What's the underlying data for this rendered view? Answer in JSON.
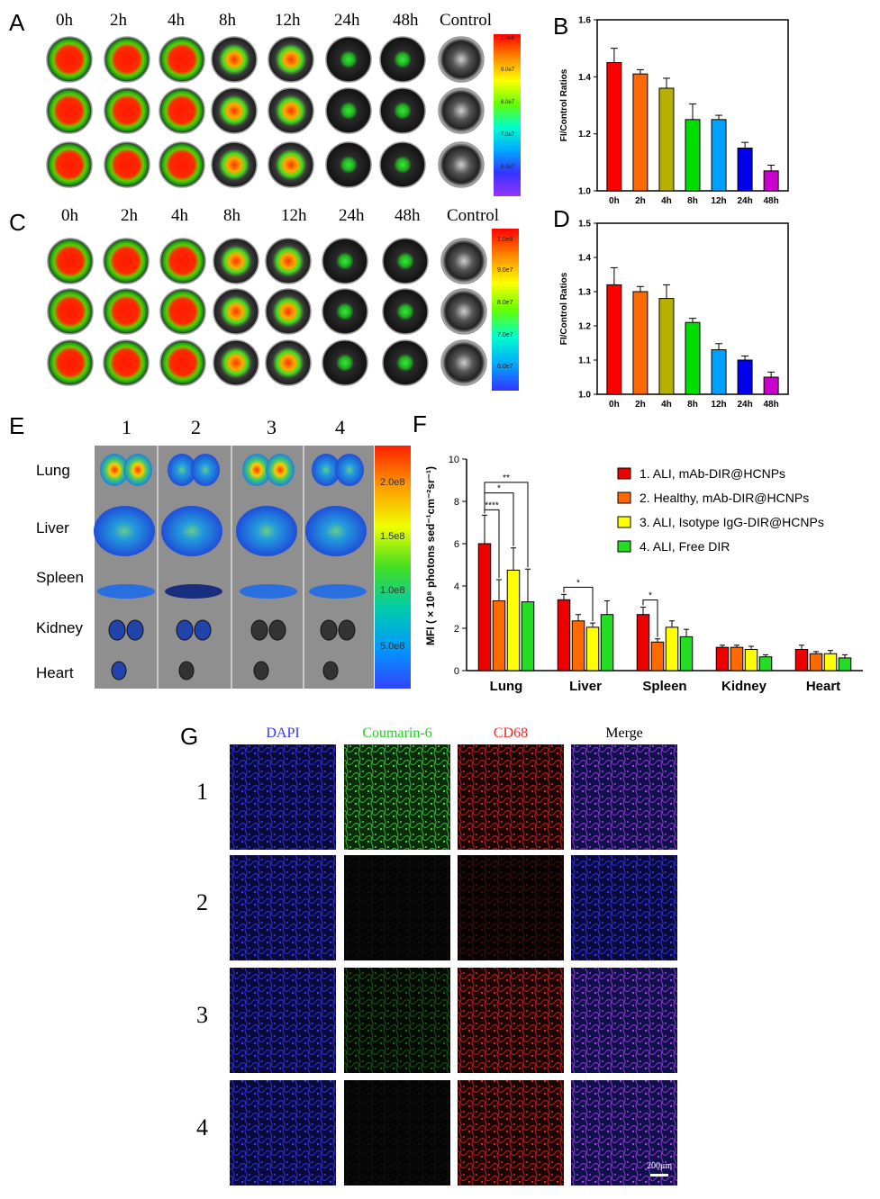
{
  "panels": {
    "A": "A",
    "B": "B",
    "C": "C",
    "D": "D",
    "E": "E",
    "F": "F",
    "G": "G"
  },
  "timepoints": [
    "0h",
    "2h",
    "4h",
    "8h",
    "12h",
    "24h",
    "48h",
    "Control"
  ],
  "scale_ac": {
    "A": [
      "1.0e8",
      "9.0e7",
      "8.0e7",
      "7.0e7",
      "6.0e7"
    ],
    "C": [
      "1.0e8",
      "9.0e7",
      "8.0e7",
      "7.0e7",
      "6.0e7"
    ]
  },
  "scale_e": [
    "2.0e8",
    "1.5e8",
    "1.0e8",
    "5.0e8"
  ],
  "panel_e": {
    "columns": [
      "1",
      "2",
      "3",
      "4"
    ],
    "organs": [
      "Lung",
      "Liver",
      "Spleen",
      "Kidney",
      "Heart"
    ]
  },
  "panel_g": {
    "channels": [
      "DAPI",
      "Coumarin-6",
      "CD68",
      "Merge"
    ],
    "channel_colors": [
      "#3333ff",
      "#22cc22",
      "#ff2222",
      "#000000"
    ],
    "rows": [
      "1",
      "2",
      "3",
      "4"
    ],
    "scalebar": "200μm"
  },
  "chart_data": [
    {
      "panel": "B",
      "type": "bar",
      "categories": [
        "0h",
        "2h",
        "4h",
        "8h",
        "12h",
        "24h",
        "48h"
      ],
      "values": [
        1.45,
        1.41,
        1.36,
        1.25,
        1.25,
        1.15,
        1.07
      ],
      "errors": [
        0.05,
        0.015,
        0.035,
        0.055,
        0.015,
        0.02,
        0.02
      ],
      "colors": [
        "#ff0000",
        "#ff6a00",
        "#b7b000",
        "#00dd00",
        "#00a0ff",
        "#0000ee",
        "#cc00cc"
      ],
      "ylabel": "FI/Control Ratios",
      "ylim": [
        1.0,
        1.6
      ],
      "yticks": [
        "1.0",
        "1.2",
        "1.4",
        "1.6"
      ]
    },
    {
      "panel": "D",
      "type": "bar",
      "categories": [
        "0h",
        "2h",
        "4h",
        "8h",
        "12h",
        "24h",
        "48h"
      ],
      "values": [
        1.32,
        1.3,
        1.28,
        1.21,
        1.13,
        1.1,
        1.05
      ],
      "errors": [
        0.05,
        0.015,
        0.04,
        0.012,
        0.018,
        0.012,
        0.015
      ],
      "colors": [
        "#ff0000",
        "#ff6a00",
        "#b7b000",
        "#00dd00",
        "#00a0ff",
        "#0000ee",
        "#cc00cc"
      ],
      "ylabel": "FI/Control Ratios",
      "ylim": [
        1.0,
        1.5
      ],
      "yticks": [
        "1.0",
        "1.1",
        "1.2",
        "1.3",
        "1.4",
        "1.5"
      ]
    },
    {
      "panel": "F",
      "type": "bar",
      "categories": [
        "Lung",
        "Liver",
        "Spleen",
        "Kidney",
        "Heart"
      ],
      "series": [
        {
          "name": "1. ALI, mAb-DIR@HCNPs",
          "color": "#ee0000",
          "values": [
            6.0,
            3.35,
            2.65,
            1.1,
            1.0
          ],
          "errors": [
            1.35,
            0.25,
            0.35,
            0.1,
            0.2
          ]
        },
        {
          "name": "2. Healthy, mAb-DIR@HCNPs",
          "color": "#ff6a00",
          "values": [
            3.3,
            2.35,
            1.35,
            1.1,
            0.8
          ],
          "errors": [
            1.0,
            0.3,
            0.15,
            0.1,
            0.1
          ]
        },
        {
          "name": "3. ALI, Isotype IgG-DIR@HCNPs",
          "color": "#ffff00",
          "values": [
            4.75,
            2.05,
            2.05,
            1.0,
            0.8
          ],
          "errors": [
            1.05,
            0.2,
            0.3,
            0.15,
            0.15
          ]
        },
        {
          "name": "4. ALI, Free DIR",
          "color": "#22dd22",
          "values": [
            3.25,
            2.65,
            1.6,
            0.65,
            0.6
          ],
          "errors": [
            1.55,
            0.65,
            0.35,
            0.1,
            0.15
          ]
        }
      ],
      "ylabel": "MFI ( × 10⁸ photons sed⁻¹cm⁻²sr⁻¹)",
      "ylim": [
        0,
        10
      ],
      "yticks": [
        "0",
        "2",
        "4",
        "6",
        "8",
        "10"
      ],
      "significance": [
        {
          "from": 0,
          "to": 1,
          "category": 0,
          "label": "****"
        },
        {
          "from": 0,
          "to": 2,
          "category": 0,
          "label": "*"
        },
        {
          "from": 0,
          "to": 3,
          "category": 0,
          "label": "**"
        },
        {
          "from": 0,
          "to": 2,
          "category": 1,
          "label": "*"
        },
        {
          "from": 0,
          "to": 1,
          "category": 2,
          "label": "*"
        }
      ]
    }
  ]
}
